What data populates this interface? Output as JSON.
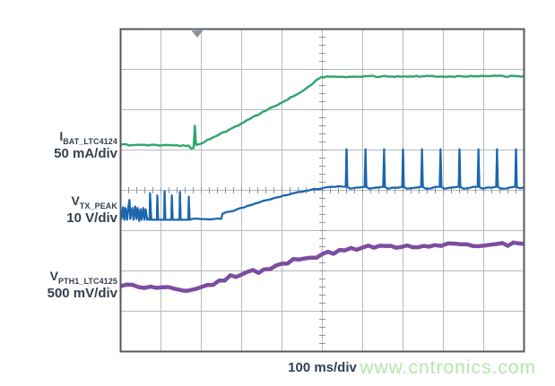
{
  "watermark": {
    "text": "www.cntronics.com",
    "color": "#b7e4af"
  },
  "timebase_label": "100 ms/div",
  "channels": [
    {
      "symbol": "I",
      "subscript": "BAT_LTC4124",
      "scale": "50 mA/div"
    },
    {
      "symbol": "V",
      "subscript": "TX_PEAK",
      "scale": "10 V/div"
    },
    {
      "symbol": "V",
      "subscript": "PTH1_LTC4125",
      "scale": "500 mV/div"
    }
  ],
  "chart_data": {
    "type": "line",
    "title": "",
    "xlabel": "100 ms/div",
    "x_axis": {
      "divisions": 10,
      "units_per_div": "100 ms",
      "minor_ticks_per_div": 5
    },
    "y_axis": {
      "divisions": 8,
      "minor_ticks_per_div": 5
    },
    "grid": true,
    "legend_position": "left",
    "trigger_marker_x_div": 1.9,
    "colors": {
      "grid_line": "#b6bac0",
      "grid_border": "#54585f",
      "tick": "#8f939a",
      "trigger_marker": "#8d939b",
      "label_text": "#333f50",
      "background": "#ffffff"
    },
    "series": [
      {
        "name": "IBAT_LTC4124",
        "vertical_scale": "50 mA/div",
        "color": "#2fa56b",
        "stroke_width": 2.4,
        "noise_amp": 0.7,
        "noise_step": 3,
        "seed": 7,
        "points_div": [
          [
            0,
            2.87
          ],
          [
            0.9,
            2.88
          ],
          [
            1.69,
            2.89
          ],
          [
            1.74,
            2.96
          ],
          [
            1.81,
            2.95
          ],
          [
            1.84,
            2.4
          ],
          [
            1.87,
            2.87
          ],
          [
            1.93,
            2.86
          ],
          [
            2.22,
            2.73
          ],
          [
            2.67,
            2.51
          ],
          [
            3.22,
            2.22
          ],
          [
            3.78,
            1.93
          ],
          [
            4.33,
            1.64
          ],
          [
            4.67,
            1.42
          ],
          [
            4.84,
            1.27
          ],
          [
            4.98,
            1.19
          ],
          [
            5.33,
            1.18
          ],
          [
            7.0,
            1.17
          ],
          [
            10,
            1.17
          ]
        ]
      },
      {
        "name": "VTX_PEAK",
        "vertical_scale": "10 V/div",
        "color": "#1b66ae",
        "stroke_width": 2.3,
        "noise_amp": 0.6,
        "noise_step": 4,
        "seed": 11,
        "points_div": [
          [
            0,
            4.51
          ],
          [
            0.02,
            4.71
          ],
          [
            0.06,
            4.42
          ],
          [
            0.09,
            4.73
          ],
          [
            0.12,
            4.44
          ],
          [
            0.16,
            4.73
          ],
          [
            0.19,
            4.42
          ],
          [
            0.22,
            4.24
          ],
          [
            0.24,
            4.71
          ],
          [
            0.29,
            4.44
          ],
          [
            0.32,
            4.73
          ],
          [
            0.36,
            4.4
          ],
          [
            0.39,
            4.71
          ],
          [
            0.42,
            4.44
          ],
          [
            0.46,
            4.76
          ],
          [
            0.49,
            4.47
          ],
          [
            0.52,
            4.73
          ],
          [
            0.56,
            4.44
          ],
          [
            0.59,
            4.73
          ],
          [
            0.62,
            4.47
          ],
          [
            0.66,
            4.73
          ],
          [
            0.69,
            4.71
          ],
          [
            0.72,
            4.73
          ],
          [
            0.73,
            4.07
          ],
          [
            0.76,
            4.73
          ],
          [
            0.9,
            4.73
          ],
          [
            0.91,
            4.13
          ],
          [
            0.93,
            4.73
          ],
          [
            1.08,
            4.73
          ],
          [
            1.09,
            4.02
          ],
          [
            1.11,
            4.73
          ],
          [
            1.26,
            4.73
          ],
          [
            1.27,
            4.13
          ],
          [
            1.29,
            4.73
          ],
          [
            1.46,
            4.73
          ],
          [
            1.47,
            4.04
          ],
          [
            1.49,
            4.73
          ],
          [
            1.68,
            4.73
          ],
          [
            1.69,
            4.16
          ],
          [
            1.71,
            4.73
          ],
          [
            1.78,
            4.71
          ],
          [
            2.49,
            4.71
          ],
          [
            2.53,
            4.58
          ],
          [
            2.89,
            4.47
          ],
          [
            3.33,
            4.33
          ],
          [
            3.78,
            4.2
          ],
          [
            4.22,
            4.09
          ],
          [
            4.67,
            4.0
          ],
          [
            5.07,
            3.93
          ],
          [
            5.22,
            3.91
          ],
          [
            5.58,
            3.91
          ],
          [
            5.6,
            2.98
          ],
          [
            5.62,
            3.92
          ],
          [
            5.7,
            3.96
          ],
          [
            6.05,
            3.91
          ],
          [
            6.07,
            2.98
          ],
          [
            6.09,
            3.92
          ],
          [
            6.17,
            3.96
          ],
          [
            6.51,
            3.91
          ],
          [
            6.53,
            2.98
          ],
          [
            6.55,
            3.92
          ],
          [
            6.63,
            3.96
          ],
          [
            6.98,
            3.91
          ],
          [
            7.0,
            2.98
          ],
          [
            7.02,
            3.92
          ],
          [
            7.1,
            3.96
          ],
          [
            7.45,
            3.91
          ],
          [
            7.47,
            2.98
          ],
          [
            7.49,
            3.92
          ],
          [
            7.57,
            3.96
          ],
          [
            7.91,
            3.91
          ],
          [
            7.93,
            2.98
          ],
          [
            7.95,
            3.92
          ],
          [
            8.03,
            3.96
          ],
          [
            8.38,
            3.91
          ],
          [
            8.4,
            2.98
          ],
          [
            8.42,
            3.92
          ],
          [
            8.5,
            3.96
          ],
          [
            8.85,
            3.91
          ],
          [
            8.87,
            2.98
          ],
          [
            8.89,
            3.92
          ],
          [
            8.97,
            3.96
          ],
          [
            9.31,
            3.91
          ],
          [
            9.33,
            2.98
          ],
          [
            9.35,
            3.92
          ],
          [
            9.43,
            3.96
          ],
          [
            9.78,
            3.91
          ],
          [
            9.8,
            2.98
          ],
          [
            9.82,
            3.92
          ],
          [
            9.9,
            3.95
          ],
          [
            10,
            3.93
          ]
        ]
      },
      {
        "name": "VPTH1_LTC4125",
        "vertical_scale": "500 mV/div",
        "color": "#7c4da0",
        "stroke_width": 4.5,
        "noise_amp": 2.6,
        "noise_step": 6,
        "seed": 23,
        "points_div": [
          [
            0,
            6.38
          ],
          [
            0.44,
            6.4
          ],
          [
            0.89,
            6.42
          ],
          [
            1.33,
            6.44
          ],
          [
            1.56,
            6.49
          ],
          [
            1.67,
            6.49
          ],
          [
            1.89,
            6.44
          ],
          [
            2.0,
            6.4
          ],
          [
            2.44,
            6.24
          ],
          [
            3.0,
            6.09
          ],
          [
            3.56,
            5.96
          ],
          [
            4.0,
            5.82
          ],
          [
            4.56,
            5.69
          ],
          [
            5.0,
            5.58
          ],
          [
            5.56,
            5.49
          ],
          [
            6.0,
            5.42
          ],
          [
            6.56,
            5.38
          ],
          [
            7.11,
            5.37
          ],
          [
            7.78,
            5.36
          ],
          [
            8.44,
            5.34
          ],
          [
            9.33,
            5.33
          ],
          [
            10,
            5.33
          ]
        ]
      }
    ]
  }
}
